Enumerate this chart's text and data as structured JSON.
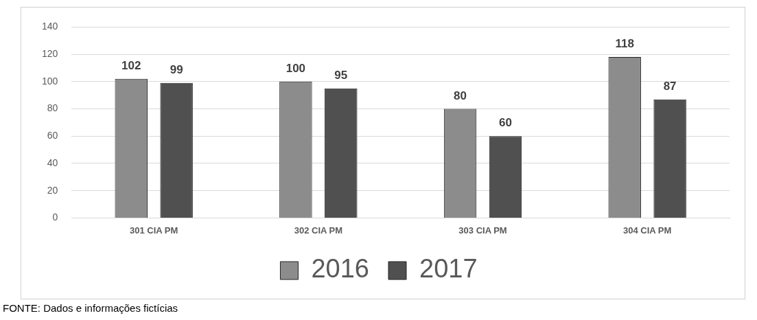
{
  "chart_data": {
    "type": "bar",
    "categories": [
      "301 CIA PM",
      "302 CIA PM",
      "303 CIA PM",
      "304 CIA PM"
    ],
    "series": [
      {
        "name": "2016",
        "color": "#8c8c8c",
        "values": [
          102,
          100,
          80,
          118
        ]
      },
      {
        "name": "2017",
        "color": "#505050",
        "values": [
          99,
          95,
          60,
          87
        ]
      }
    ],
    "ylim": [
      0,
      140
    ],
    "yticks": [
      0,
      20,
      40,
      60,
      80,
      100,
      120,
      140
    ],
    "grid": "y",
    "legend": "bottom",
    "data_labels": true,
    "annotations": [
      "FONTE: Dados e informações fictícias"
    ]
  }
}
